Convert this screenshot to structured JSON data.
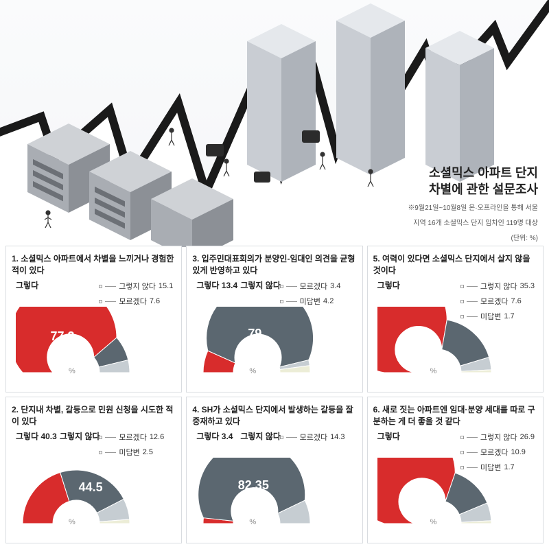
{
  "title": {
    "line1": "소셜믹스 아파트 단지",
    "line2": "차별에 관한 설문조사",
    "sub1": "※9월21일~10월8일 온·오프라인을 통해 서울",
    "sub2": "지역 16개 소셜믹스 단지 임차인 119명 대상",
    "unit": "(단위: %)"
  },
  "labels": {
    "yes": "그렇다",
    "no": "그렇지 않다",
    "dk": "모르겠다",
    "na": "미답변",
    "pct": "%"
  },
  "colors": {
    "yes": "#d82c2c",
    "no": "#5b6770",
    "dk": "#c6cdd2",
    "na": "#ecedd7",
    "line": "#999999"
  },
  "panels": [
    {
      "q": "1. 소셜믹스 아파트에서 차별을 느끼거나 경험한 적이 있다",
      "segments": [
        {
          "k": "yes",
          "v": 77.3
        },
        {
          "k": "no",
          "v": 15.1
        },
        {
          "k": "dk",
          "v": 7.6
        }
      ],
      "bigKey": "yes",
      "bigVal": "77.3",
      "legend": [
        {
          "k": "no",
          "v": "15.1"
        },
        {
          "k": "dk",
          "v": "7.6"
        }
      ],
      "yesLabelLeft": true
    },
    {
      "q": "3. 입주민대표회의가 분양인-임대인 의견을 균형있게 반영하고 있다",
      "segments": [
        {
          "k": "yes",
          "v": 13.4
        },
        {
          "k": "no",
          "v": 79
        },
        {
          "k": "dk",
          "v": 3.4
        },
        {
          "k": "na",
          "v": 4.2
        }
      ],
      "bigKey": "no",
      "bigVal": "79",
      "legend": [
        {
          "k": "dk",
          "v": "3.4"
        },
        {
          "k": "na",
          "v": "4.2"
        }
      ],
      "yesVal": "13.4",
      "yesLabelLeft": true
    },
    {
      "q": "5. 여력이 있다면 소셜믹스 단지에서 살지 않을 것이다",
      "segments": [
        {
          "k": "yes",
          "v": 55.5
        },
        {
          "k": "no",
          "v": 35.3
        },
        {
          "k": "dk",
          "v": 7.6
        },
        {
          "k": "na",
          "v": 1.7
        }
      ],
      "bigKey": "yes",
      "bigVal": "55.5",
      "legend": [
        {
          "k": "no",
          "v": "35.3"
        },
        {
          "k": "dk",
          "v": "7.6"
        },
        {
          "k": "na",
          "v": "1.7"
        }
      ],
      "yesLabelLeft": true
    },
    {
      "q": "2. 단지내 차별, 갈등으로 민원 신청을 시도한 적이 있다",
      "segments": [
        {
          "k": "yes",
          "v": 40.3
        },
        {
          "k": "no",
          "v": 44.5
        },
        {
          "k": "dk",
          "v": 12.6
        },
        {
          "k": "na",
          "v": 2.5
        }
      ],
      "bigKey": "no",
      "bigVal": "44.5",
      "legend": [
        {
          "k": "dk",
          "v": "12.6"
        },
        {
          "k": "na",
          "v": "2.5"
        }
      ],
      "yesVal": "40.3",
      "yesLabelLeft": true
    },
    {
      "q": "4. SH가 소셜믹스 단지에서 발생하는 갈등을 잘 중재하고 있다",
      "segments": [
        {
          "k": "yes",
          "v": 3.4
        },
        {
          "k": "no",
          "v": 82.35
        },
        {
          "k": "dk",
          "v": 14.3
        }
      ],
      "bigKey": "no",
      "bigVal": "82.35",
      "legend": [
        {
          "k": "dk",
          "v": "14.3"
        }
      ],
      "yesVal": "3.4",
      "yesLabelLeft": true
    },
    {
      "q": "6. 새로 짓는 아파트엔 임대·분양 세대를 따로 구분하는 게 더 좋을 것 같다",
      "segments": [
        {
          "k": "yes",
          "v": 60.5
        },
        {
          "k": "no",
          "v": 26.9
        },
        {
          "k": "dk",
          "v": 10.9
        },
        {
          "k": "na",
          "v": 1.7
        }
      ],
      "bigKey": "yes",
      "bigVal": "60.5",
      "legend": [
        {
          "k": "no",
          "v": "26.9"
        },
        {
          "k": "dk",
          "v": "10.9"
        },
        {
          "k": "na",
          "v": "1.7"
        }
      ],
      "yesLabelLeft": true
    }
  ]
}
